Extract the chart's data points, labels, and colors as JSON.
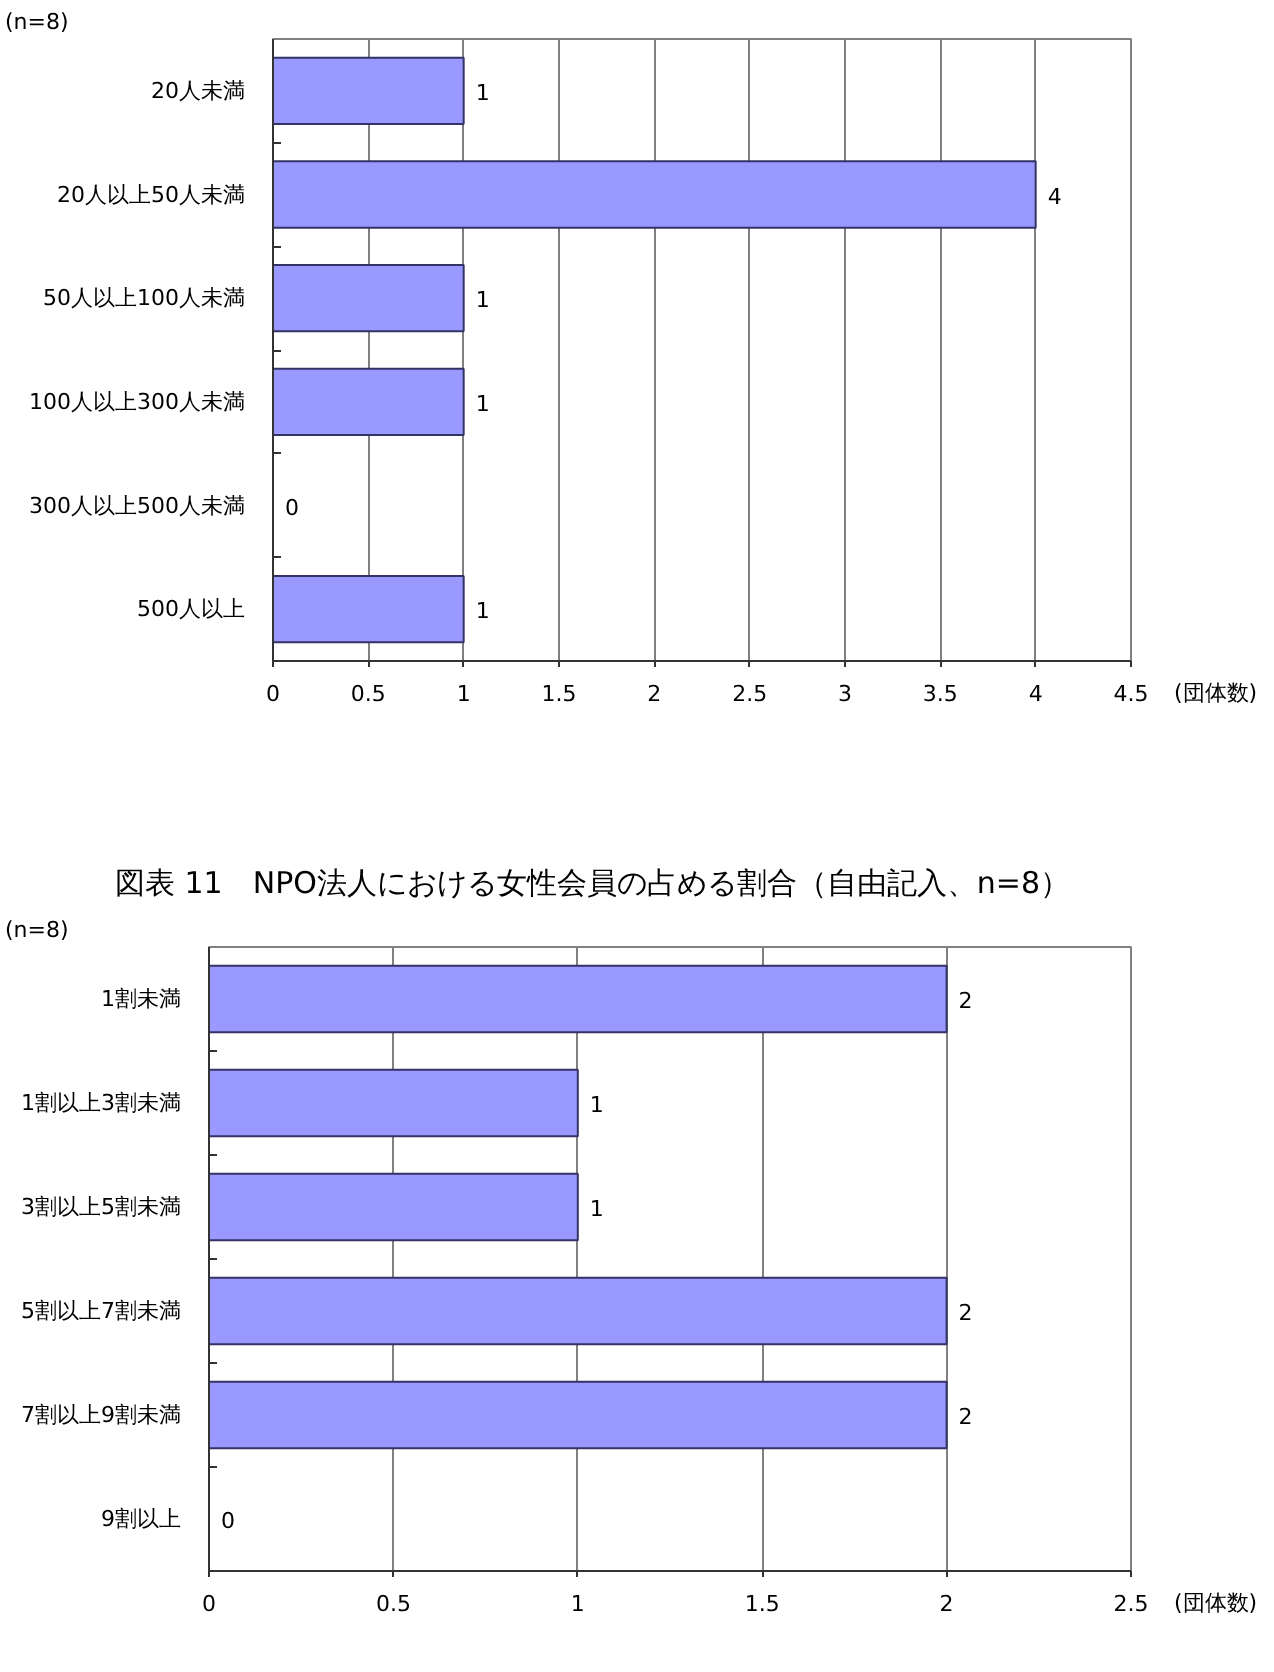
{
  "chart_data": [
    {
      "type": "bar",
      "orientation": "horizontal",
      "categories": [
        "20人未満",
        "20人以上50人未満",
        "50人以上100人未満",
        "100人以上300人未満",
        "300人以上500人未満",
        "500人以上"
      ],
      "values": [
        1,
        4,
        1,
        1,
        0,
        1
      ],
      "color": "#9999ff",
      "xlim": [
        0,
        4.5
      ],
      "xticks": [
        0,
        0.5,
        1,
        1.5,
        2,
        2.5,
        3,
        3.5,
        4,
        4.5
      ],
      "xlabel": "(団体数)",
      "grid": "x",
      "data_labels": true,
      "annotations": [
        "(n=8)"
      ]
    },
    {
      "type": "bar",
      "orientation": "horizontal",
      "title": "図表 11　NPO法人における女性会員の占める割合（自由記入、n=8）",
      "categories": [
        "1割未満",
        "1割以上3割未満",
        "3割以上5割未満",
        "5割以上7割未満",
        "7割以上9割未満",
        "9割以上"
      ],
      "values": [
        2,
        1,
        1,
        2,
        2,
        0
      ],
      "color": "#9999ff",
      "xlim": [
        0,
        2.5
      ],
      "xticks": [
        0,
        0.5,
        1,
        1.5,
        2,
        2.5
      ],
      "xlabel": "(団体数)",
      "grid": "x",
      "data_labels": true,
      "annotations": [
        "(n=8)"
      ]
    }
  ]
}
